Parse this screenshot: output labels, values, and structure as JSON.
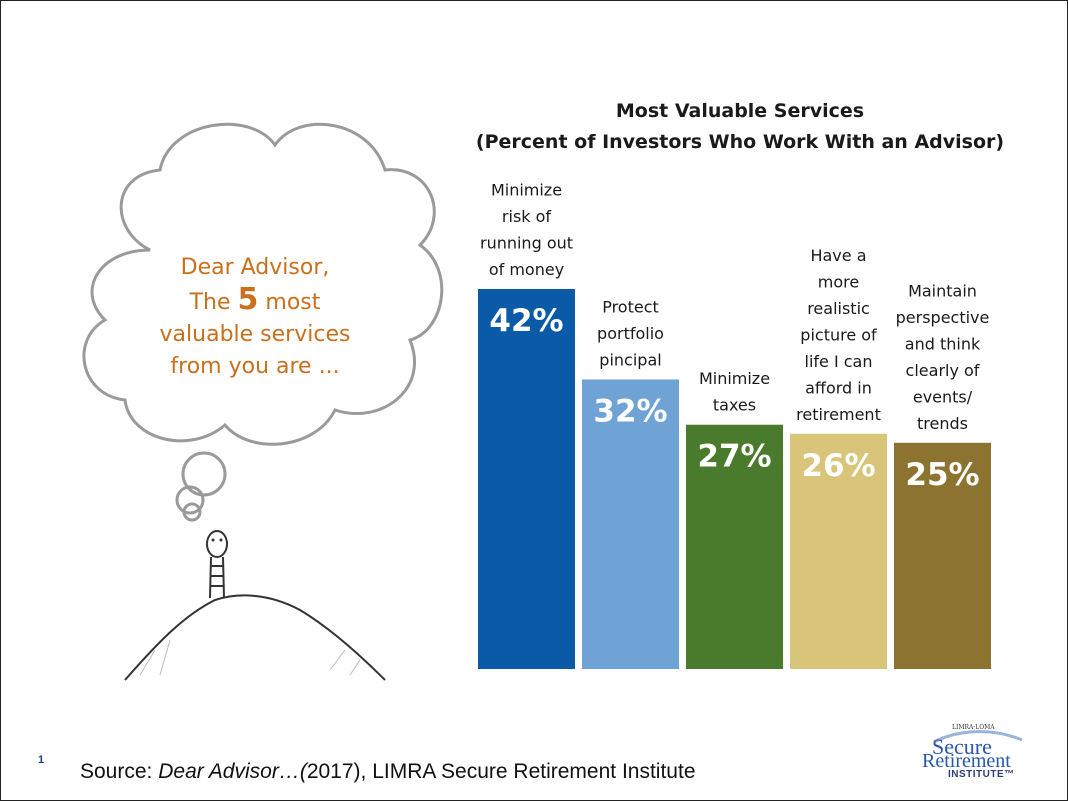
{
  "chart_data": {
    "type": "bar",
    "title": "Most Valuable Services",
    "subtitle": "(Percent of Investors Who Work With an Advisor)",
    "categories": [
      "Minimize risk of running out of money",
      "Protect portfolio pincipal",
      "Minimize taxes",
      "Have a more realistic picture of life I can afford in retirement",
      "Maintain perspective and think clearly of events/ trends"
    ],
    "category_lines": [
      [
        "Minimize",
        "risk of",
        "running out",
        "of money"
      ],
      [
        "Protect",
        "portfolio",
        "pincipal"
      ],
      [
        "Minimize",
        "taxes"
      ],
      [
        "Have a",
        "more",
        "realistic",
        "picture of",
        "life I can",
        "afford in",
        "retirement"
      ],
      [
        "Maintain",
        "perspective",
        "and think",
        "clearly of",
        "events/",
        "trends"
      ]
    ],
    "values": [
      42,
      32,
      27,
      26,
      25
    ],
    "value_labels": [
      "42%",
      "32%",
      "27%",
      "26%",
      "25%"
    ],
    "colors": [
      "#0a5aa8",
      "#6fa3d5",
      "#4a7a2b",
      "#d9c57a",
      "#8c7430"
    ],
    "ylim": [
      0,
      42
    ],
    "xlabel": "",
    "ylabel": "",
    "grid": false
  },
  "cloud": {
    "line1": "Dear Advisor,",
    "line2_pre": "The",
    "line2_num": "5",
    "line2_post": "most",
    "line3": "valuable  services",
    "line4": "from you are ..."
  },
  "footer": {
    "page_number": "1",
    "source_prefix": "Source: ",
    "source_title": "Dear Advisor…(",
    "source_rest": "2017), LIMRA Secure Retirement Institute"
  },
  "logo": {
    "top": "LIMRA·LOMA",
    "secure": "Secure",
    "retirement": "Retirement",
    "institute": "INSTITUTE™"
  }
}
